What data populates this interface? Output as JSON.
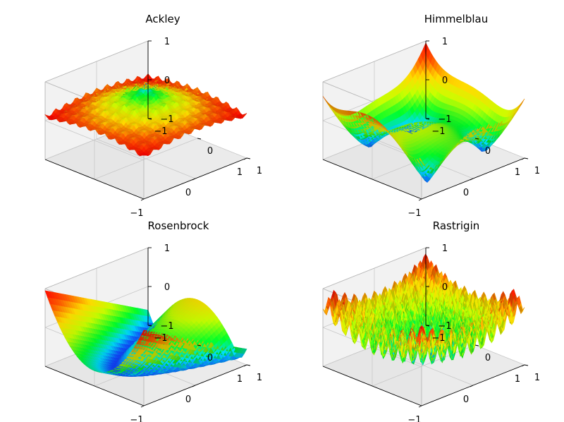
{
  "chart_data": [
    {
      "type": "surface3d",
      "title": "Ackley",
      "xlabel": "",
      "ylabel": "",
      "zlabel": "",
      "x_ticks": [
        "−1",
        "0",
        "1"
      ],
      "y_ticks": [
        "−1",
        "0",
        "1"
      ],
      "z_ticks": [
        "−1",
        "0",
        "1"
      ],
      "xlim": [
        -1,
        1
      ],
      "ylim": [
        -1,
        1
      ],
      "zlim": [
        -1,
        1
      ],
      "grid": true,
      "colormap": "hsv",
      "function": "ackley",
      "surface_range": {
        "x": [
          -5,
          5
        ],
        "y": [
          -5,
          5
        ]
      },
      "z_display_range": [
        0.95,
        0.05
      ],
      "global_minimum": {
        "x": 0,
        "y": 0
      }
    },
    {
      "type": "surface3d",
      "title": "Himmelblau",
      "xlabel": "",
      "ylabel": "",
      "zlabel": "",
      "x_ticks": [
        "−1",
        "0",
        "1"
      ],
      "y_ticks": [
        "−1",
        "0",
        "1"
      ],
      "z_ticks": [
        "−1",
        "0",
        "1"
      ],
      "xlim": [
        -1,
        1
      ],
      "ylim": [
        -1,
        1
      ],
      "zlim": [
        -1,
        1
      ],
      "grid": true,
      "colormap": "hsv",
      "function": "himmelblau",
      "surface_range": {
        "x": [
          -5,
          5
        ],
        "y": [
          -5,
          5
        ]
      },
      "z_display_range": [
        -0.9,
        0.95
      ],
      "minima_count": 4
    },
    {
      "type": "surface3d",
      "title": "Rosenbrock",
      "xlabel": "",
      "ylabel": "",
      "zlabel": "",
      "x_ticks": [
        "−1",
        "0",
        "1"
      ],
      "y_ticks": [
        "−1",
        "0",
        "1"
      ],
      "z_ticks": [
        "−1",
        "0",
        "1"
      ],
      "xlim": [
        -1,
        1
      ],
      "ylim": [
        -1,
        1
      ],
      "zlim": [
        -1,
        1
      ],
      "grid": true,
      "colormap": "hsv",
      "function": "rosenbrock",
      "surface_range": {
        "x": [
          -2,
          2
        ],
        "y": [
          -1,
          3
        ]
      },
      "z_display_range": [
        -1.0,
        0.95
      ],
      "global_minimum": {
        "x": 1,
        "y": 1
      }
    },
    {
      "type": "surface3d",
      "title": "Rastrigin",
      "xlabel": "",
      "ylabel": "",
      "zlabel": "",
      "x_ticks": [
        "−1",
        "0",
        "1"
      ],
      "y_ticks": [
        "−1",
        "0",
        "1"
      ],
      "z_ticks": [
        "−1",
        "0",
        "1"
      ],
      "xlim": [
        -1,
        1
      ],
      "ylim": [
        -1,
        1
      ],
      "zlim": [
        -1,
        1
      ],
      "grid": true,
      "colormap": "hsv",
      "function": "rastrigin",
      "surface_range": {
        "x": [
          -5.12,
          5.12
        ],
        "y": [
          -5.12,
          5.12
        ]
      },
      "z_display_range": [
        -0.75,
        0.95
      ],
      "global_minimum": {
        "x": 0,
        "y": 0
      }
    }
  ]
}
